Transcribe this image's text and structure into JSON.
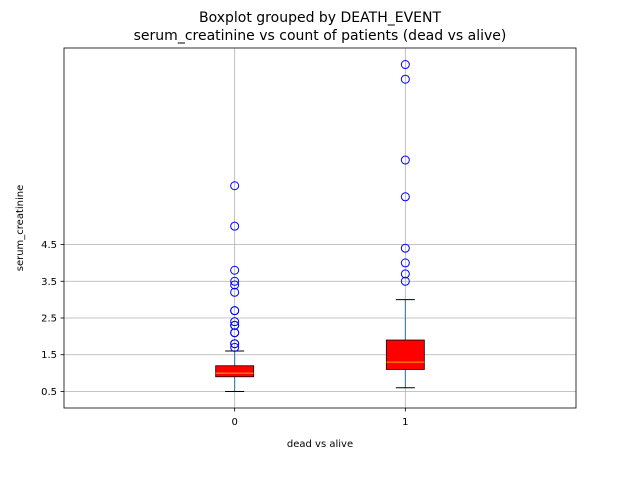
{
  "chart_data": {
    "type": "box",
    "title_lines": [
      "Boxplot grouped by DEATH_EVENT",
      "serum_creatinine vs count of patients (dead vs alive)"
    ],
    "xlabel": "dead vs alive",
    "ylabel": "serum_creatinine",
    "categories": [
      "0",
      "1"
    ],
    "yticks": [
      0.5,
      1.5,
      2.5,
      3.5,
      4.5
    ],
    "ylim": [
      0.05,
      9.85
    ],
    "grid": true,
    "box_color": "#ff0000",
    "median_color": "#ffa500",
    "whisker_color": "#1f77b4",
    "cap_color": "#000000",
    "flier_color": "#0000ff",
    "boxes": [
      {
        "category": "0",
        "whislo": 0.5,
        "q1": 0.9,
        "median": 1.0,
        "q3": 1.2,
        "whishi": 1.6,
        "fliers": [
          6.1,
          5.0,
          3.8,
          3.5,
          3.4,
          3.2,
          2.7,
          2.7,
          2.4,
          2.3,
          2.3,
          2.1,
          2.1,
          1.8,
          1.8,
          1.7
        ]
      },
      {
        "category": "1",
        "whislo": 0.6,
        "q1": 1.1,
        "median": 1.3,
        "q3": 1.9,
        "whishi": 3.0,
        "fliers": [
          9.4,
          9.0,
          6.8,
          5.8,
          4.4,
          4.0,
          3.7,
          3.5
        ]
      }
    ]
  }
}
